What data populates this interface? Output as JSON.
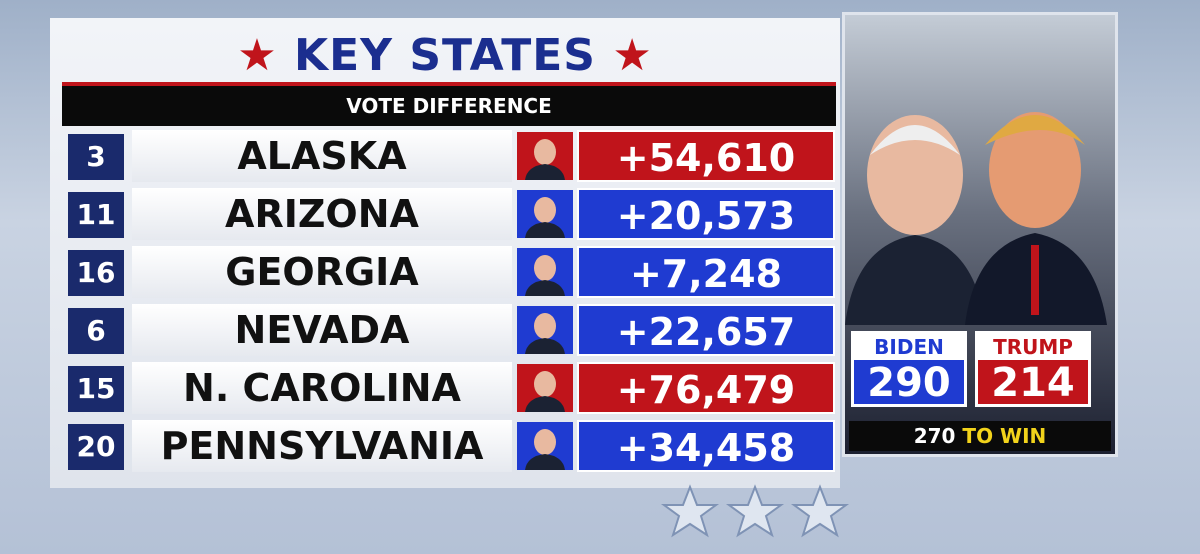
{
  "header": {
    "title": "KEY STATES",
    "subtitle": "VOTE DIFFERENCE"
  },
  "table": {
    "rows": [
      {
        "electoral_votes": 3,
        "state": "ALASKA",
        "margin": "+54,610",
        "color": "#c0141b"
      },
      {
        "electoral_votes": 11,
        "state": "ARIZONA",
        "margin": "+20,573",
        "color": "#1f3bd1"
      },
      {
        "electoral_votes": 16,
        "state": "GEORGIA",
        "margin": "+7,248",
        "color": "#1f3bd1"
      },
      {
        "electoral_votes": 6,
        "state": "NEVADA",
        "margin": "+22,657",
        "color": "#1f3bd1"
      },
      {
        "electoral_votes": 15,
        "state": "N. CAROLINA",
        "margin": "+76,479",
        "color": "#c0141b"
      },
      {
        "electoral_votes": 20,
        "state": "PENNSYLVANIA",
        "margin": "+34,458",
        "color": "#1f3bd1"
      }
    ]
  },
  "tally": {
    "candidates": [
      {
        "name": "BIDEN",
        "votes": 290,
        "color": "#1f3bd1"
      },
      {
        "name": "TRUMP",
        "votes": 214,
        "color": "#c0141b"
      }
    ],
    "threshold": 270,
    "threshold_label": "TO WIN"
  }
}
